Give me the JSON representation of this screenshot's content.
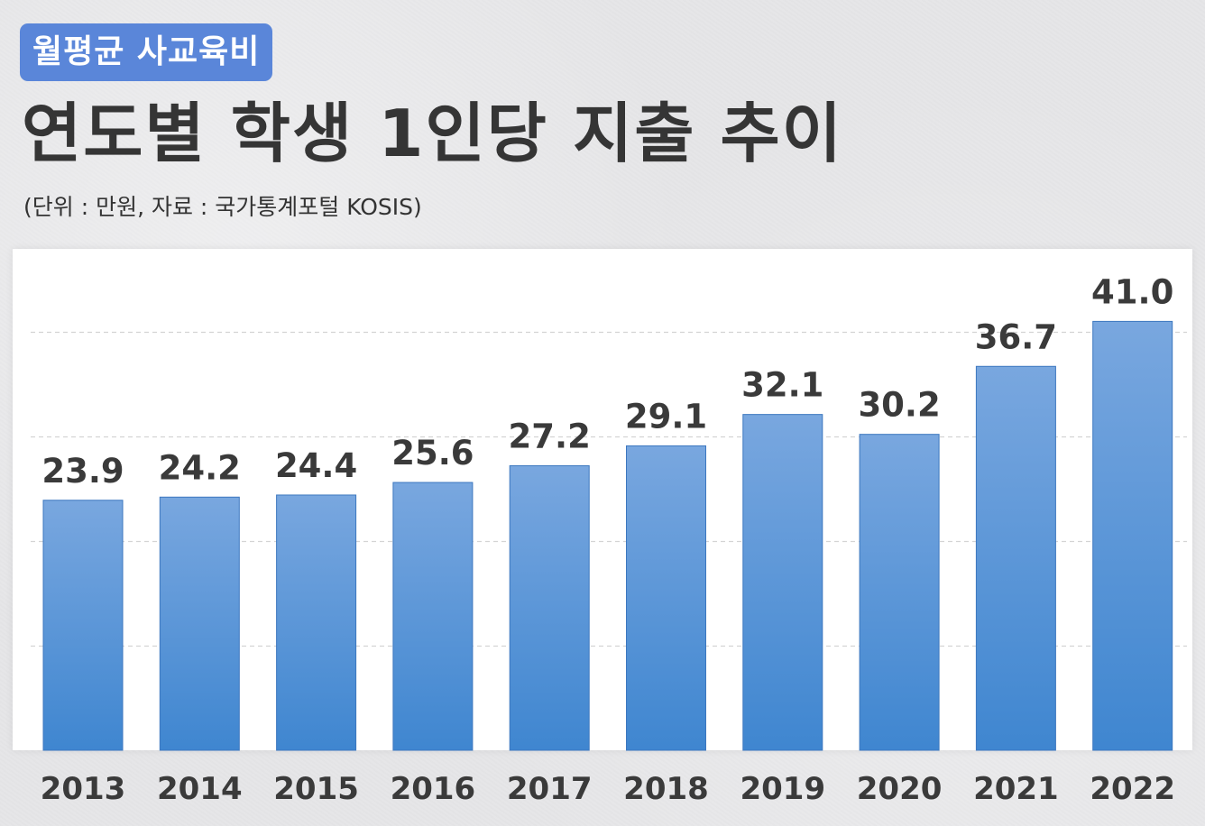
{
  "header": {
    "badge": "월평균 사교육비",
    "title": "연도별 학생 1인당 지출 추이",
    "subtitle": "(단위 : 만원, 자료 : 국가통계포털 KOSIS)"
  },
  "chart_data": {
    "type": "bar",
    "title": "연도별 학생 1인당 지출 추이",
    "categories": [
      "2013",
      "2014",
      "2015",
      "2016",
      "2017",
      "2018",
      "2019",
      "2020",
      "2021",
      "2022"
    ],
    "values": [
      23.9,
      24.2,
      24.4,
      25.6,
      27.2,
      29.1,
      32.1,
      30.2,
      36.7,
      41.0
    ],
    "value_labels": [
      "23.9",
      "24.2",
      "24.4",
      "25.6",
      "27.2",
      "29.1",
      "32.1",
      "30.2",
      "36.7",
      "41.0"
    ],
    "ylim": [
      0,
      47
    ],
    "grid": true,
    "colors": {
      "bar_top": "#79a7df",
      "bar_bottom": "#3f86d0",
      "badge": "#5a86d9"
    }
  }
}
